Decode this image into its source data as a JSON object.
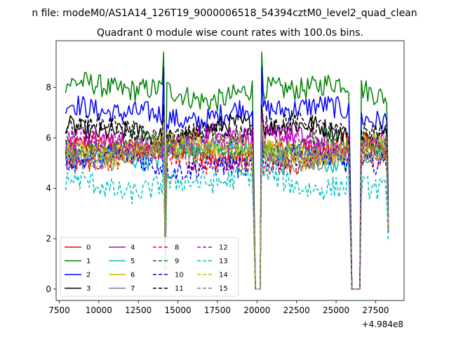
{
  "chart_data": {
    "type": "line",
    "suptitle": "n file: modeM0/AS1A14_126T19_9000006518_54394cztM0_level2_quad_clean",
    "title": "Quadrant 0 module wise count rates with 100.0s bins.",
    "xlabel": "",
    "ylabel": "",
    "x_offset_label": "+4.984e8",
    "xlim": [
      7300,
      29300
    ],
    "ylim": [
      -0.45,
      9.85
    ],
    "xticks": [
      7500,
      10000,
      12500,
      15000,
      17500,
      20000,
      22500,
      25000,
      27500
    ],
    "xtick_labels": [
      "7500",
      "10000",
      "12500",
      "15000",
      "17500",
      "20000",
      "22500",
      "25000",
      "27500"
    ],
    "yticks": [
      0,
      2,
      4,
      6,
      8
    ],
    "ytick_labels": [
      "0",
      "2",
      "4",
      "6",
      "8"
    ],
    "time_range": [
      7900,
      28300
    ],
    "bin_width": 100,
    "gaps": [
      [
        14050,
        14200
      ],
      [
        19900,
        20300
      ],
      [
        25950,
        26550
      ]
    ],
    "spikes": [
      14100,
      20300,
      26550
    ],
    "legend_position": "lower-left",
    "series": [
      {
        "name": "0",
        "color": "#ff0000",
        "dash": "solid",
        "mean": 5.5,
        "amp": 0.45,
        "spike": 6.8
      },
      {
        "name": "1",
        "color": "#008000",
        "dash": "solid",
        "mean": 7.85,
        "amp": 0.45,
        "spike": 9.4
      },
      {
        "name": "2",
        "color": "#0000ff",
        "dash": "solid",
        "mean": 7.0,
        "amp": 0.45,
        "spike": 8.8
      },
      {
        "name": "3",
        "color": "#000000",
        "dash": "solid",
        "mean": 6.3,
        "amp": 0.4,
        "spike": 7.3
      },
      {
        "name": "4",
        "color": "#bf00bf",
        "dash": "solid",
        "mean": 5.9,
        "amp": 0.45,
        "spike": 7.0
      },
      {
        "name": "5",
        "color": "#00bfbf",
        "dash": "solid",
        "mean": 5.4,
        "amp": 0.45,
        "spike": 6.5
      },
      {
        "name": "6",
        "color": "#bfbf00",
        "dash": "solid",
        "mean": 5.6,
        "amp": 0.45,
        "spike": 6.7
      },
      {
        "name": "7",
        "color": "#808080",
        "dash": "solid",
        "mean": 5.2,
        "amp": 0.4,
        "spike": 6.4
      },
      {
        "name": "8",
        "color": "#ff0000",
        "dash": "dashed",
        "mean": 5.1,
        "amp": 0.4,
        "spike": 6.3
      },
      {
        "name": "9",
        "color": "#008000",
        "dash": "dashed",
        "mean": 5.6,
        "amp": 0.4,
        "spike": 6.6
      },
      {
        "name": "10",
        "color": "#0000ff",
        "dash": "dashed",
        "mean": 5.0,
        "amp": 0.45,
        "spike": 6.2
      },
      {
        "name": "11",
        "color": "#000000",
        "dash": "dashed",
        "mean": 6.3,
        "amp": 0.4,
        "spike": 7.2
      },
      {
        "name": "12",
        "color": "#bf00bf",
        "dash": "dashed",
        "mean": 5.8,
        "amp": 0.4,
        "spike": 6.9
      },
      {
        "name": "13",
        "color": "#00bfbf",
        "dash": "dashed",
        "mean": 4.2,
        "amp": 0.45,
        "spike": 5.6
      },
      {
        "name": "14",
        "color": "#bfbf00",
        "dash": "dashed",
        "mean": 5.5,
        "amp": 0.45,
        "spike": 6.6
      },
      {
        "name": "15",
        "color": "#808080",
        "dash": "dashed",
        "mean": 5.6,
        "amp": 0.4,
        "spike": 6.5
      }
    ]
  }
}
